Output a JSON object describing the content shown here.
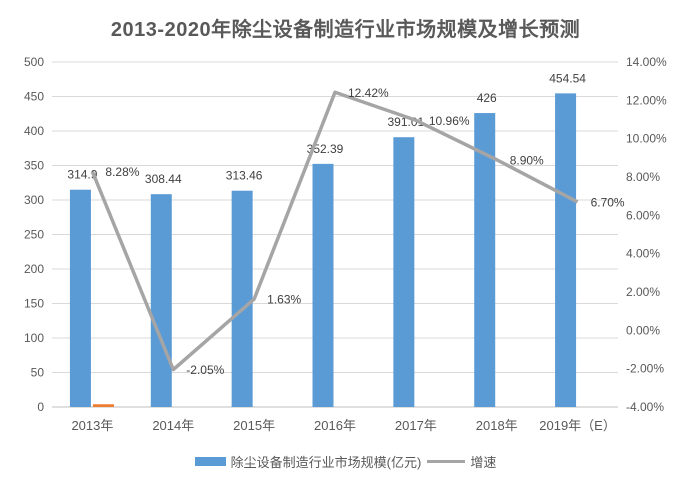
{
  "title": "2013-2020年除尘设备制造行业市场规模及增长预测",
  "chart_data": {
    "type": "bar+line combo",
    "title": "2013-2020年除尘设备制造行业市场规模及增长预测",
    "categories": [
      "2013年",
      "2014年",
      "2015年",
      "2016年",
      "2017年",
      "2018年",
      "2019年（E）"
    ],
    "series": [
      {
        "name": "除尘设备制造行业市场规模(亿元)",
        "type": "bar",
        "axis": "left",
        "color": "#5B9BD5",
        "values": [
          314.9,
          308.44,
          313.46,
          352.39,
          391.01,
          426,
          454.54
        ],
        "labels": [
          "314.9",
          "308.44",
          "313.46",
          "352.39",
          "391.01",
          "426",
          "454.54"
        ]
      },
      {
        "name": "orange-dash",
        "type": "bar",
        "axis": "left",
        "color": "#ED7D31",
        "in_legend": false,
        "values": [
          4,
          null,
          null,
          null,
          null,
          null,
          null
        ],
        "labels": [
          null,
          null,
          null,
          null,
          null,
          null,
          null
        ]
      },
      {
        "name": "增速",
        "type": "line",
        "axis": "right",
        "color": "#A5A5A5",
        "values": [
          8.28,
          -2.05,
          1.63,
          12.42,
          10.96,
          8.9,
          6.7
        ],
        "labels": [
          "8.28%",
          "-2.05%",
          "1.63%",
          "12.42%",
          "10.96%",
          "8.90%",
          "6.70%"
        ]
      }
    ],
    "left_axis": {
      "min": 0,
      "max": 500,
      "step": 50
    },
    "right_axis": {
      "min": -4,
      "max": 14,
      "step": 2,
      "format": "0.00%"
    },
    "grid": true,
    "legend_position": "bottom",
    "legend": [
      {
        "label": "除尘设备制造行业市场规模(亿元)",
        "swatch": "bar",
        "color": "#5B9BD5"
      },
      {
        "label": "增速",
        "swatch": "line",
        "color": "#A5A5A5"
      }
    ],
    "colors": {
      "bar": "#5B9BD5",
      "orange_dash": "#ED7D31",
      "line": "#A5A5A5",
      "gridline": "#D9D9D9",
      "axis_line": "#BFBFBF",
      "tick_label": "#595959",
      "data_label": "#404040",
      "title": "#595959"
    }
  }
}
